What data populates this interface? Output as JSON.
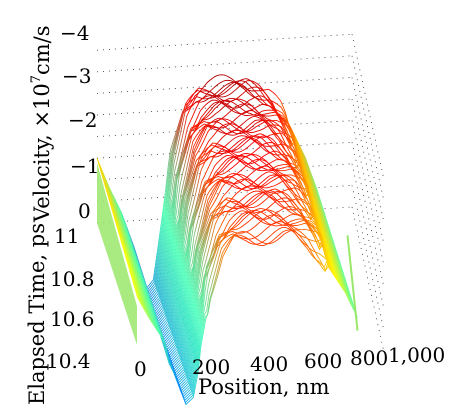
{
  "chart_data": {
    "type": "surface-3d-waterfall",
    "xlabel": "Position, nm",
    "ylabel": "Elapsed Time, ps",
    "zlabel": {
      "main": "Velocity, ×10",
      "exponent": "7",
      "unit": "cm/s"
    },
    "x_ticks": [
      "0",
      "200",
      "400",
      "600",
      "800",
      "1,000"
    ],
    "y_ticks": [
      "10.4",
      "10.6",
      "10.8",
      "11"
    ],
    "z_ticks": [
      "−4",
      "−3",
      "−2",
      "−1",
      "0"
    ],
    "xlim": [
      0,
      1000
    ],
    "ylim": [
      10.4,
      11.0
    ],
    "zlim": [
      -4,
      0
    ],
    "grid": true,
    "colormap": "jet",
    "n_traces": 60,
    "profile": {
      "x": [
        0,
        50,
        100,
        150,
        200,
        230,
        260,
        300,
        350,
        400,
        450,
        500,
        550,
        600,
        650,
        700,
        750,
        800,
        850,
        900
      ],
      "z": [
        -1.5,
        -0.8,
        -0.2,
        0.6,
        1.6,
        1.4,
        0.2,
        -1.5,
        -2.6,
        -3.0,
        -3.1,
        -3.1,
        -3.1,
        -3.1,
        -3.0,
        -2.8,
        -2.4,
        -1.8,
        -1.2,
        -0.4
      ]
    }
  }
}
